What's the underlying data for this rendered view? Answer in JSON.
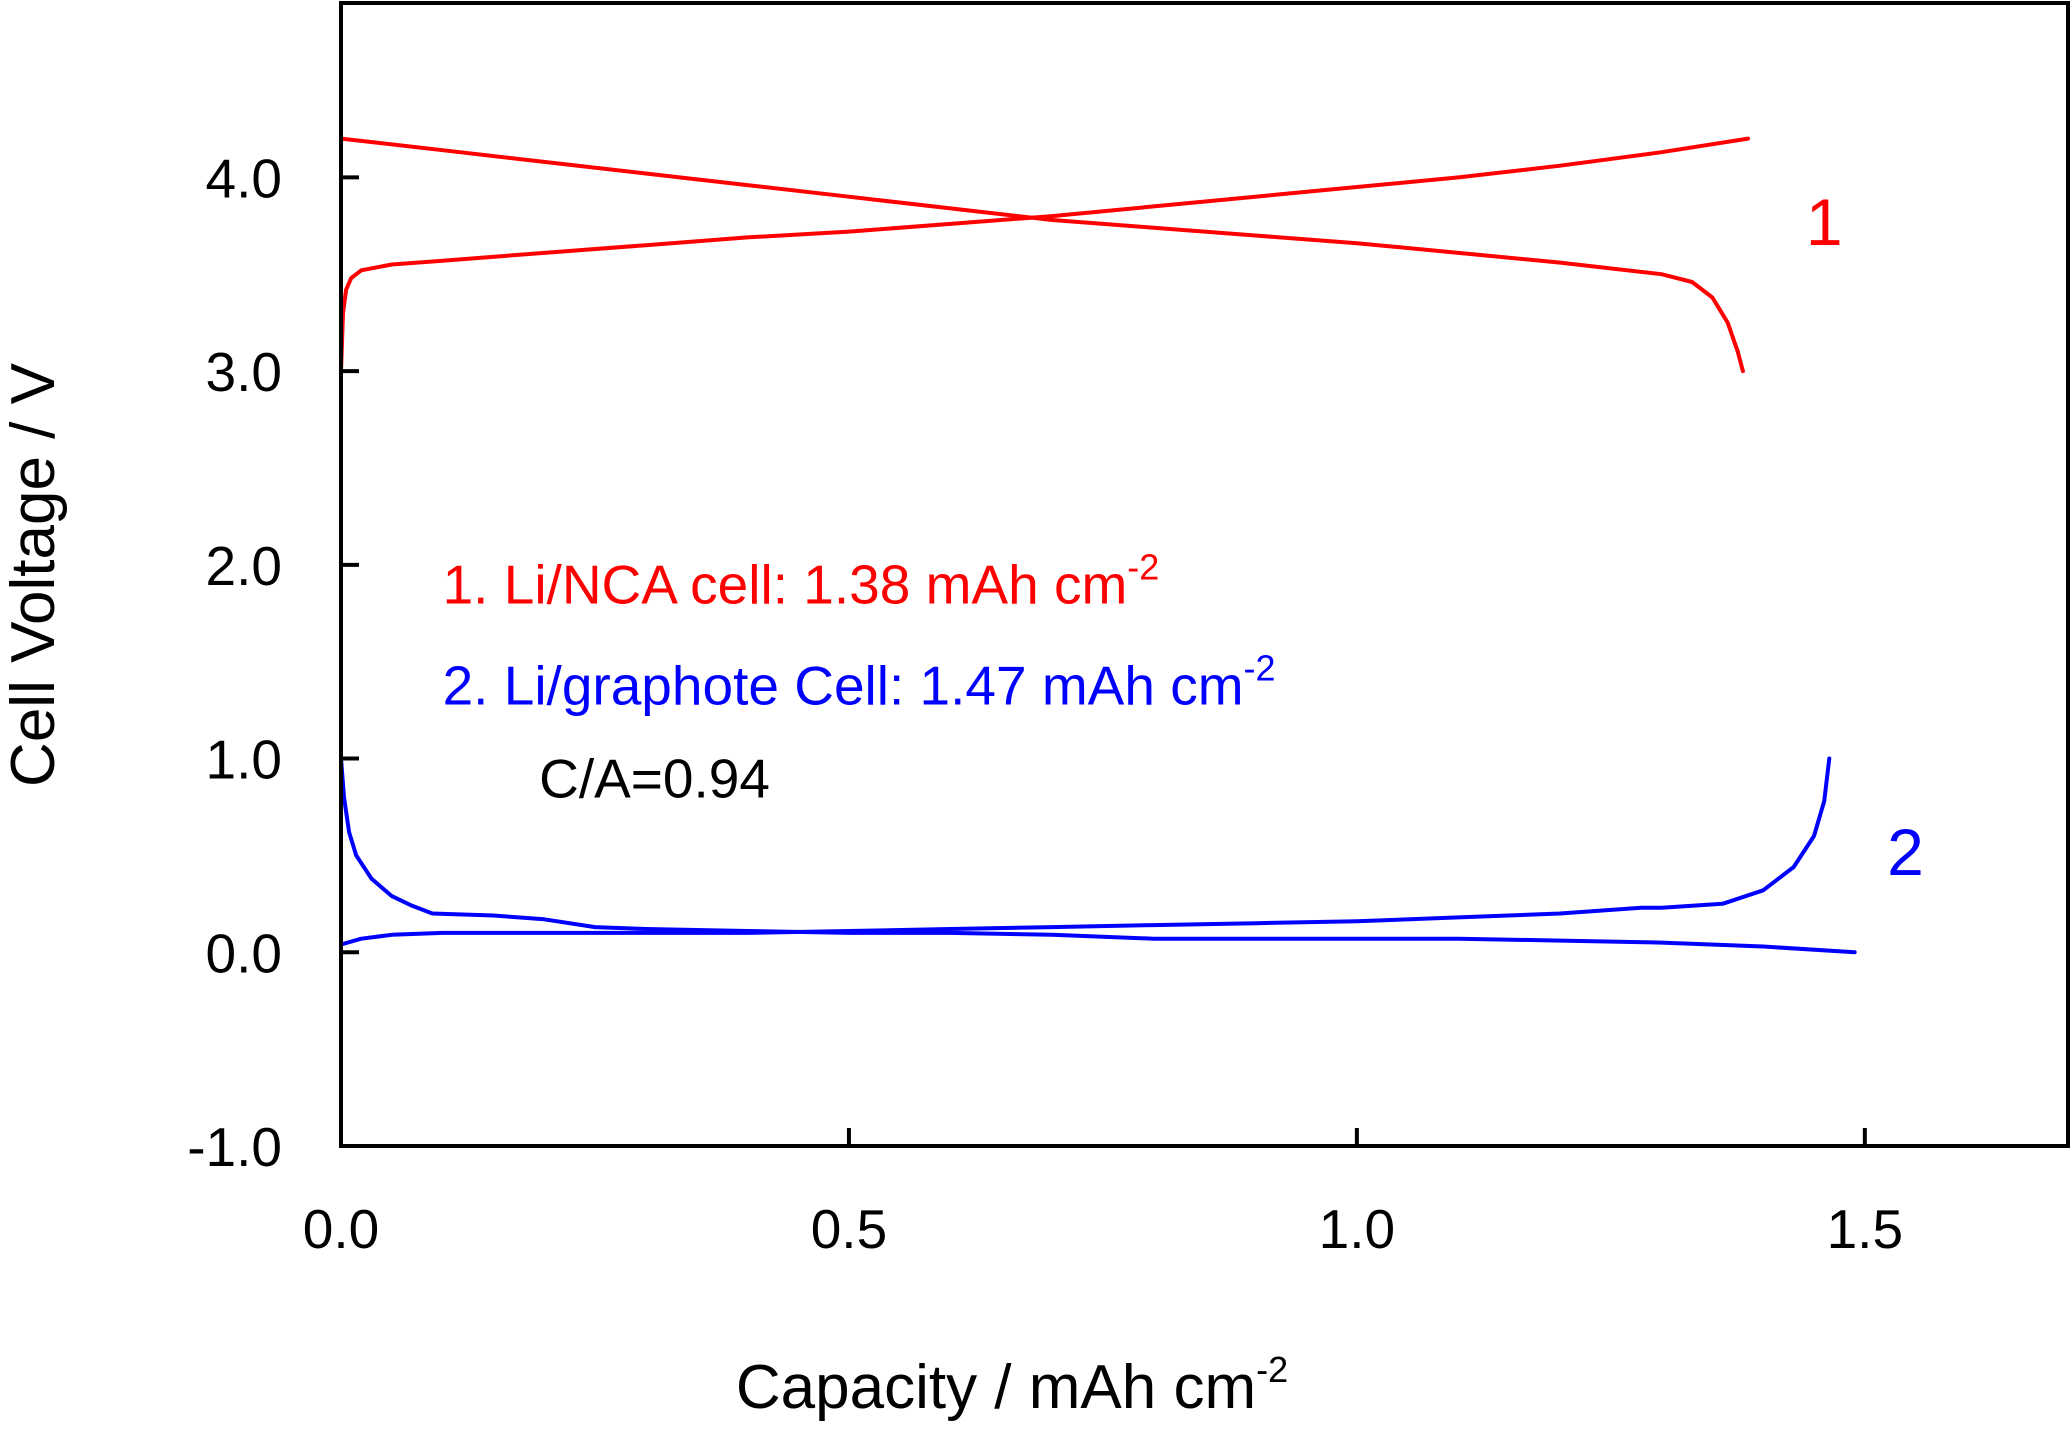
{
  "chart_data": {
    "type": "line",
    "xlabel": "Capacity / mAh cm",
    "xlabel_sup": "-2",
    "ylabel": "Cell Voltage / V",
    "xlim": [
      0,
      1.7
    ],
    "ylim": [
      -1.0,
      4.9
    ],
    "x_ticks": [
      0.0,
      0.5,
      1.0,
      1.5
    ],
    "x_tick_labels": [
      "0.0",
      "0.5",
      "1.0",
      "1.5"
    ],
    "y_ticks": [
      -1.0,
      0.0,
      1.0,
      2.0,
      3.0,
      4.0
    ],
    "y_tick_labels": [
      "-1.0",
      "0.0",
      "1.0",
      "2.0",
      "3.0",
      "4.0"
    ],
    "grid": false,
    "colors": {
      "series1": "#ff0000",
      "series2": "#0000ff",
      "note": "#000000"
    },
    "curve_labels": [
      {
        "text": "1",
        "color": "#ff0000",
        "x": 1.46,
        "y": 3.65
      },
      {
        "text": "2",
        "color": "#0000ff",
        "x": 1.54,
        "y": 0.4
      }
    ],
    "annotations": [
      {
        "prefix": "1.  Li/NCA cell: 1.38 mAh cm",
        "sup": "-2",
        "color": "#ff0000",
        "x": 0.1,
        "y": 1.8
      },
      {
        "prefix": "2.  Li/graphote Cell:  1.47 mAh cm",
        "sup": "-2",
        "color": "#0000ff",
        "x": 0.1,
        "y": 1.28
      },
      {
        "prefix": "C/A=0.94",
        "sup": "",
        "color": "#000000",
        "x": 0.195,
        "y": 0.8
      }
    ],
    "series": [
      {
        "color": "#ff0000",
        "points": [
          [
            0.0,
            3.0
          ],
          [
            0.002,
            3.3
          ],
          [
            0.005,
            3.42
          ],
          [
            0.01,
            3.48
          ],
          [
            0.02,
            3.52
          ],
          [
            0.05,
            3.55
          ],
          [
            0.1,
            3.57
          ],
          [
            0.2,
            3.61
          ],
          [
            0.3,
            3.65
          ],
          [
            0.4,
            3.69
          ],
          [
            0.5,
            3.72
          ],
          [
            0.6,
            3.76
          ],
          [
            0.7,
            3.8
          ],
          [
            0.8,
            3.85
          ],
          [
            0.9,
            3.9
          ],
          [
            1.0,
            3.95
          ],
          [
            1.1,
            4.0
          ],
          [
            1.2,
            4.06
          ],
          [
            1.3,
            4.13
          ],
          [
            1.385,
            4.2
          ]
        ]
      },
      {
        "color": "#ff0000",
        "points": [
          [
            0.0,
            4.2
          ],
          [
            0.1,
            4.14
          ],
          [
            0.2,
            4.08
          ],
          [
            0.3,
            4.02
          ],
          [
            0.4,
            3.96
          ],
          [
            0.5,
            3.9
          ],
          [
            0.6,
            3.84
          ],
          [
            0.7,
            3.78
          ],
          [
            0.8,
            3.74
          ],
          [
            0.9,
            3.7
          ],
          [
            1.0,
            3.66
          ],
          [
            1.1,
            3.61
          ],
          [
            1.2,
            3.56
          ],
          [
            1.3,
            3.5
          ],
          [
            1.33,
            3.46
          ],
          [
            1.35,
            3.38
          ],
          [
            1.365,
            3.25
          ],
          [
            1.375,
            3.1
          ],
          [
            1.38,
            3.0
          ]
        ]
      },
      {
        "color": "#0000ff",
        "points": [
          [
            0.0,
            1.0
          ],
          [
            0.003,
            0.8
          ],
          [
            0.008,
            0.62
          ],
          [
            0.015,
            0.5
          ],
          [
            0.03,
            0.38
          ],
          [
            0.05,
            0.29
          ],
          [
            0.07,
            0.24
          ],
          [
            0.09,
            0.2
          ],
          [
            0.15,
            0.19
          ],
          [
            0.2,
            0.17
          ],
          [
            0.25,
            0.13
          ],
          [
            0.3,
            0.12
          ],
          [
            0.4,
            0.11
          ],
          [
            0.5,
            0.1
          ],
          [
            0.6,
            0.1
          ],
          [
            0.7,
            0.09
          ],
          [
            0.8,
            0.07
          ],
          [
            0.9,
            0.07
          ],
          [
            1.0,
            0.07
          ],
          [
            1.1,
            0.07
          ],
          [
            1.2,
            0.06
          ],
          [
            1.3,
            0.05
          ],
          [
            1.4,
            0.03
          ],
          [
            1.49,
            0.0
          ]
        ]
      },
      {
        "color": "#0000ff",
        "points": [
          [
            0.0,
            0.04
          ],
          [
            0.02,
            0.07
          ],
          [
            0.05,
            0.09
          ],
          [
            0.1,
            0.1
          ],
          [
            0.2,
            0.1
          ],
          [
            0.3,
            0.1
          ],
          [
            0.4,
            0.1
          ],
          [
            0.5,
            0.11
          ],
          [
            0.6,
            0.12
          ],
          [
            0.7,
            0.13
          ],
          [
            0.8,
            0.14
          ],
          [
            0.9,
            0.15
          ],
          [
            1.0,
            0.16
          ],
          [
            1.1,
            0.18
          ],
          [
            1.2,
            0.2
          ],
          [
            1.28,
            0.23
          ],
          [
            1.3,
            0.23
          ],
          [
            1.36,
            0.25
          ],
          [
            1.4,
            0.32
          ],
          [
            1.43,
            0.44
          ],
          [
            1.45,
            0.6
          ],
          [
            1.46,
            0.78
          ],
          [
            1.465,
            1.0
          ]
        ]
      }
    ]
  }
}
